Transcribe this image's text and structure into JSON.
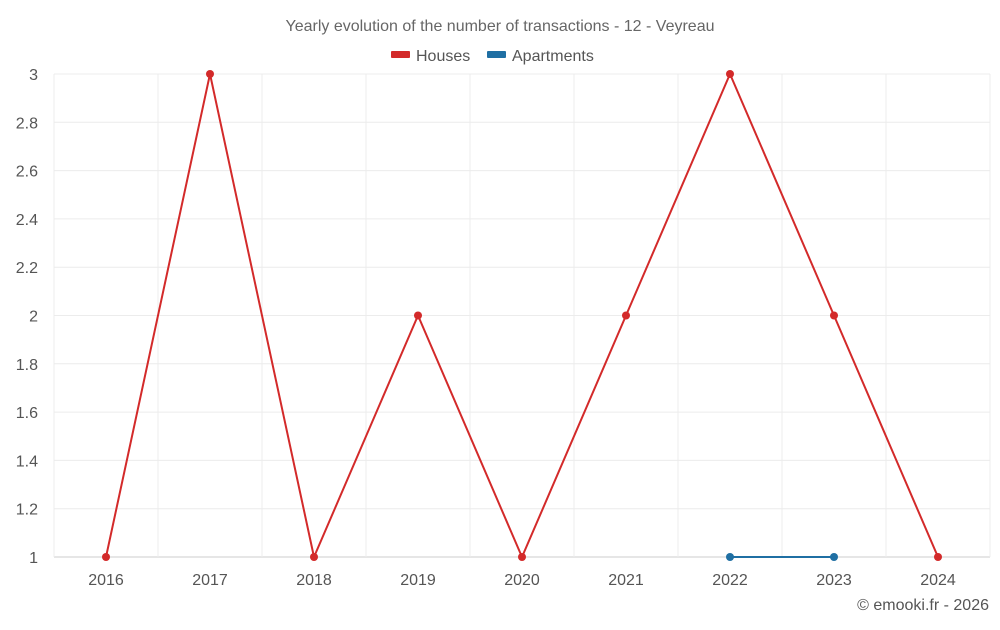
{
  "chart_data": {
    "type": "line",
    "title": "Yearly evolution of the number of transactions - 12 - Veyreau",
    "categories": [
      "2016",
      "2017",
      "2018",
      "2019",
      "2020",
      "2021",
      "2022",
      "2023",
      "2024"
    ],
    "series": [
      {
        "name": "Houses",
        "color": "#d32a2a",
        "values": [
          1,
          3,
          1,
          2,
          1,
          2,
          3,
          2,
          1
        ]
      },
      {
        "name": "Apartments",
        "color": "#1f6fa3",
        "values": [
          null,
          null,
          null,
          null,
          null,
          null,
          1,
          1,
          null
        ]
      }
    ],
    "ylim": [
      1,
      3
    ],
    "yticks": [
      1,
      1.2,
      1.4,
      1.6,
      1.8,
      2,
      2.2,
      2.4,
      2.6,
      2.8,
      3
    ],
    "ytick_labels": [
      "1",
      "1.2",
      "1.4",
      "1.6",
      "1.8",
      "2",
      "2.2",
      "2.4",
      "2.6",
      "2.8",
      "3"
    ],
    "xlabel": "",
    "ylabel": "",
    "grid": true,
    "legend_position": "top-center"
  },
  "credit": "© emooki.fr - 2026"
}
